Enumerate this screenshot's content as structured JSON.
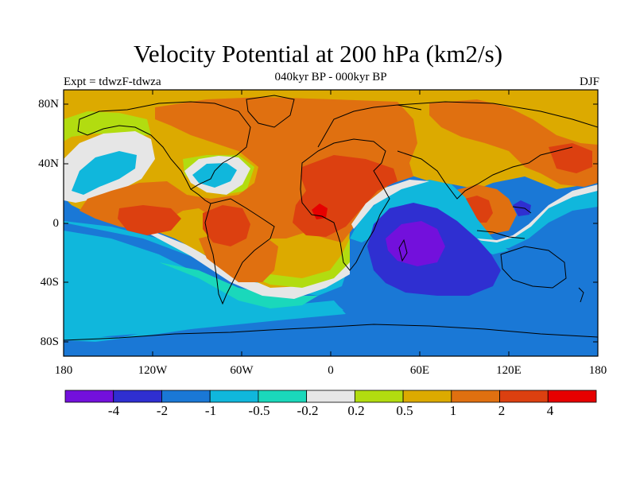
{
  "figure": {
    "title": "Velocity Potential at 200 hPa (km2/s)",
    "subtitle": "040kyr BP - 000kyr BP",
    "experiment": "Expt = tdwzF-tdwza",
    "season": "DJF"
  },
  "axes": {
    "x_ticks": [
      "180",
      "120W",
      "60W",
      "0",
      "60E",
      "120E",
      "180"
    ],
    "y_ticks": [
      "80N",
      "40N",
      "0",
      "40S",
      "80S"
    ]
  },
  "colorbar": {
    "labels": [
      "-4",
      "-2",
      "-1",
      "-0.5",
      "-0.2",
      "0.2",
      "0.5",
      "1",
      "2",
      "4"
    ],
    "colors": [
      "#7310dc",
      "#2f2fd1",
      "#1a78d6",
      "#10b7dc",
      "#1ad8bb",
      "#e6e6e6",
      "#b2dc10",
      "#dcaa00",
      "#e07010",
      "#dc4010",
      "#e60000"
    ]
  }
}
